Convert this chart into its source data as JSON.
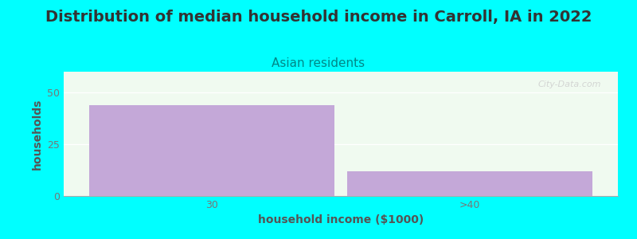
{
  "title": "Distribution of median household income in Carroll, IA in 2022",
  "subtitle": "Asian residents",
  "xlabel": "household income ($1000)",
  "ylabel": "households",
  "categories": [
    "30",
    ">40"
  ],
  "values": [
    44,
    12
  ],
  "bar_color": "#c4a8d8",
  "background_color": "#00ffff",
  "plot_bg_color": "#f0faf0",
  "ylim": [
    0,
    60
  ],
  "yticks": [
    0,
    25,
    50
  ],
  "title_fontsize": 14,
  "subtitle_fontsize": 11,
  "label_fontsize": 10,
  "tick_fontsize": 9,
  "title_color": "#333333",
  "subtitle_color": "#008888",
  "axis_label_color": "#555555",
  "tick_color": "#777777",
  "watermark": "City-Data.com"
}
